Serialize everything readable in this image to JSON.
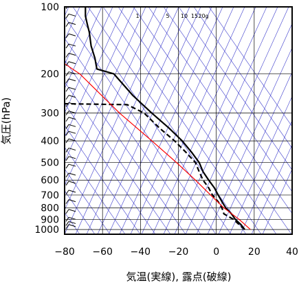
{
  "chart_data": {
    "type": "line",
    "subtype": "skew-t log-p sounding",
    "xlabel": "気温(実線), 露点(破線)",
    "ylabel": "気圧(hPa)",
    "xlim": [
      -80,
      40
    ],
    "ylim": [
      1050,
      100
    ],
    "y_scale": "log",
    "x_ticks": [
      -80,
      -60,
      -40,
      -20,
      0,
      20,
      40
    ],
    "x_tick_labels": [
      "−80",
      "−60",
      "−40",
      "−20",
      "0",
      "20",
      "40"
    ],
    "y_ticks": [
      100,
      200,
      300,
      400,
      500,
      600,
      700,
      800,
      900,
      1000
    ],
    "y_tick_labels": [
      "100",
      "200",
      "300",
      "400",
      "500",
      "600",
      "700",
      "800",
      "900",
      "1000"
    ],
    "mixing_ratio_labels": [
      "1",
      "5",
      "10",
      "15",
      "20g"
    ],
    "colors": {
      "temperature": "#000000",
      "dewpoint": "#000000",
      "parcel": "#ff0000",
      "background_lines": "#3a3acc",
      "grid": "#000000"
    },
    "series": [
      {
        "role": "temperature",
        "style": "solid",
        "points": [
          {
            "p": 1000,
            "x": 15
          },
          {
            "p": 950,
            "x": 13
          },
          {
            "p": 900,
            "x": 10
          },
          {
            "p": 850,
            "x": 8
          },
          {
            "p": 800,
            "x": 5
          },
          {
            "p": 750,
            "x": 3
          },
          {
            "p": 700,
            "x": 1
          },
          {
            "p": 650,
            "x": -1
          },
          {
            "p": 600,
            "x": -4
          },
          {
            "p": 550,
            "x": -7
          },
          {
            "p": 500,
            "x": -9
          },
          {
            "p": 450,
            "x": -13
          },
          {
            "p": 400,
            "x": -18
          },
          {
            "p": 350,
            "x": -25
          },
          {
            "p": 300,
            "x": -34
          },
          {
            "p": 250,
            "x": -44
          },
          {
            "p": 200,
            "x": -54
          },
          {
            "p": 190,
            "x": -63
          },
          {
            "p": 170,
            "x": -64
          },
          {
            "p": 150,
            "x": -66
          },
          {
            "p": 130,
            "x": -67
          },
          {
            "p": 120,
            "x": -68
          },
          {
            "p": 110,
            "x": -69
          },
          {
            "p": 100,
            "x": -69
          }
        ]
      },
      {
        "role": "dewpoint",
        "style": "dashed",
        "points": [
          {
            "p": 1000,
            "x": 15
          },
          {
            "p": 950,
            "x": 12
          },
          {
            "p": 900,
            "x": 9
          },
          {
            "p": 850,
            "x": 4
          },
          {
            "p": 800,
            "x": 3
          },
          {
            "p": 750,
            "x": 1
          },
          {
            "p": 700,
            "x": -2
          },
          {
            "p": 650,
            "x": -4
          },
          {
            "p": 600,
            "x": -7
          },
          {
            "p": 550,
            "x": -9
          },
          {
            "p": 500,
            "x": -11
          },
          {
            "p": 450,
            "x": -16
          },
          {
            "p": 400,
            "x": -22
          },
          {
            "p": 350,
            "x": -30
          },
          {
            "p": 300,
            "x": -38
          },
          {
            "p": 275,
            "x": -47
          },
          {
            "p": 272,
            "x": -82
          }
        ]
      },
      {
        "role": "parcel",
        "style": "solid",
        "points": [
          {
            "p": 1000,
            "x": 18
          },
          {
            "p": 900,
            "x": 12
          },
          {
            "p": 800,
            "x": 4
          },
          {
            "p": 700,
            "x": -3
          },
          {
            "p": 600,
            "x": -11
          },
          {
            "p": 500,
            "x": -21
          },
          {
            "p": 400,
            "x": -34
          },
          {
            "p": 300,
            "x": -51
          },
          {
            "p": 200,
            "x": -72
          },
          {
            "p": 180,
            "x": -80
          }
        ]
      }
    ]
  }
}
